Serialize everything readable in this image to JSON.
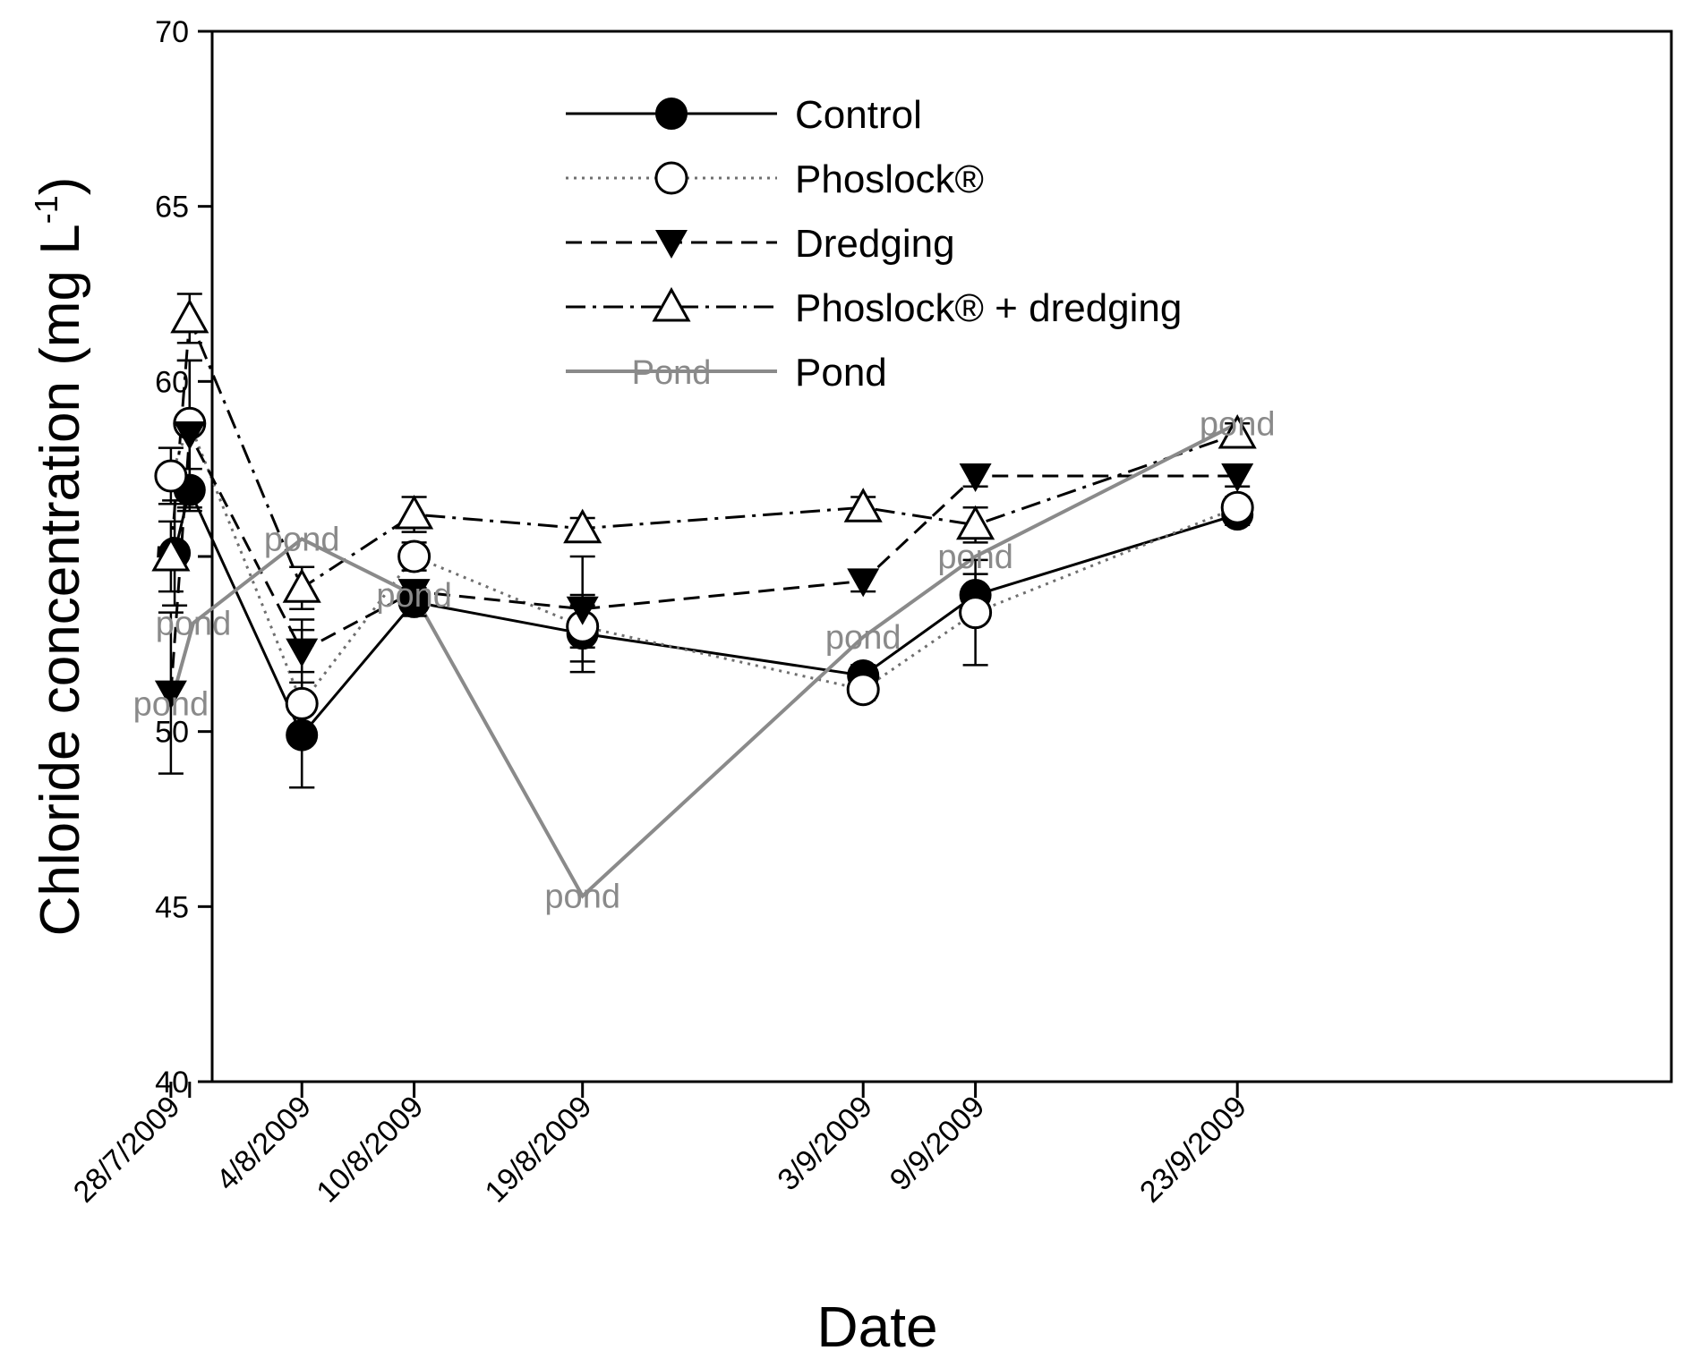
{
  "chart_data": {
    "type": "line",
    "title": "",
    "xlabel": "Date",
    "ylabel": "Chloride concentration (mg L",
    "ylabel_superscript": "-1",
    "ylabel_close": ")",
    "ylim": [
      40,
      70
    ],
    "yticks": [
      40,
      45,
      50,
      55,
      60,
      65,
      70
    ],
    "day_range": [
      0,
      62
    ],
    "x_ticks": [
      {
        "label": "28/7/2009",
        "day": 1
      },
      {
        "label": "4/8/2009",
        "day": 8
      },
      {
        "label": "10/8/2009",
        "day": 14
      },
      {
        "label": "19/8/2009",
        "day": 23
      },
      {
        "label": "3/9/2009",
        "day": 38
      },
      {
        "label": "9/9/2009",
        "day": 44
      },
      {
        "label": "23/9/2009",
        "day": 58
      }
    ],
    "legend_position": "top",
    "series": [
      {
        "name": "Control",
        "marker": "filled-circle",
        "line": "solid",
        "color": "#000000",
        "points": [
          {
            "day": 1.2,
            "y": 55.1,
            "err": 1.5
          },
          {
            "day": 2.0,
            "y": 56.9,
            "err": 0.6
          },
          {
            "day": 8.0,
            "y": 49.9,
            "err": 1.5
          },
          {
            "day": 14.0,
            "y": 53.7,
            "err": 0.4
          },
          {
            "day": 23.0,
            "y": 52.8,
            "err": 1.1
          },
          {
            "day": 38.0,
            "y": 51.6,
            "err": 0.3
          },
          {
            "day": 44.0,
            "y": 53.9,
            "err": 0.6
          },
          {
            "day": 58.0,
            "y": 56.2,
            "err": 0.3
          }
        ]
      },
      {
        "name": "Phoslock®",
        "marker": "open-circle",
        "line": "dotted",
        "color": "#6f6f6f",
        "points": [
          {
            "day": 1.0,
            "y": 57.3,
            "err": 0.8
          },
          {
            "day": 2.0,
            "y": 58.8,
            "err": 1.8
          },
          {
            "day": 8.0,
            "y": 50.8,
            "err": 2.4
          },
          {
            "day": 14.0,
            "y": 55.0,
            "err": 0.4
          },
          {
            "day": 23.0,
            "y": 53.0,
            "err": 0.6
          },
          {
            "day": 38.0,
            "y": 51.2,
            "err": 0.3
          },
          {
            "day": 44.0,
            "y": 53.4,
            "err": 1.5
          },
          {
            "day": 58.0,
            "y": 56.4,
            "err": 0.3
          }
        ]
      },
      {
        "name": "Dredging",
        "marker": "filled-triangle-down",
        "line": "dashed",
        "color": "#000000",
        "points": [
          {
            "day": 1.0,
            "y": 51.1,
            "err": 2.3
          },
          {
            "day": 2.0,
            "y": 58.5,
            "err": 2.1
          },
          {
            "day": 8.0,
            "y": 52.3,
            "err": 0.6
          },
          {
            "day": 14.0,
            "y": 54.0,
            "err": 0.3
          },
          {
            "day": 23.0,
            "y": 53.5,
            "err": 1.5
          },
          {
            "day": 38.0,
            "y": 54.3,
            "err": 0.3
          },
          {
            "day": 44.0,
            "y": 57.3,
            "err": 0.3
          },
          {
            "day": 58.0,
            "y": 57.3,
            "err": 0.3
          }
        ]
      },
      {
        "name": "Phoslock® + dredging",
        "marker": "open-triangle-up",
        "line": "dash-dot",
        "color": "#000000",
        "points": [
          {
            "day": 1.0,
            "y": 55.0,
            "err": 1.0
          },
          {
            "day": 2.0,
            "y": 61.8,
            "err": 0.7
          },
          {
            "day": 8.0,
            "y": 54.1,
            "err": 0.6
          },
          {
            "day": 14.0,
            "y": 56.2,
            "err": 0.5
          },
          {
            "day": 23.0,
            "y": 55.8,
            "err": 0.3
          },
          {
            "day": 38.0,
            "y": 56.4,
            "err": 0.3
          },
          {
            "day": 44.0,
            "y": 55.9,
            "err": 0.5
          },
          {
            "day": 58.0,
            "y": 58.5,
            "err": 0.3
          }
        ]
      },
      {
        "name": "Pond",
        "marker": "text-label",
        "marker_text": "pond",
        "legend_marker_text": "Pond",
        "line": "solid",
        "color": "#8a8a8a",
        "points": [
          {
            "day": 1.0,
            "y": 50.8
          },
          {
            "day": 2.2,
            "y": 53.1
          },
          {
            "day": 8.0,
            "y": 55.5
          },
          {
            "day": 14.0,
            "y": 53.9
          },
          {
            "day": 23.0,
            "y": 45.3
          },
          {
            "day": 38.0,
            "y": 52.7
          },
          {
            "day": 44.0,
            "y": 55.0
          },
          {
            "day": 58.0,
            "y": 58.8
          }
        ]
      }
    ]
  }
}
